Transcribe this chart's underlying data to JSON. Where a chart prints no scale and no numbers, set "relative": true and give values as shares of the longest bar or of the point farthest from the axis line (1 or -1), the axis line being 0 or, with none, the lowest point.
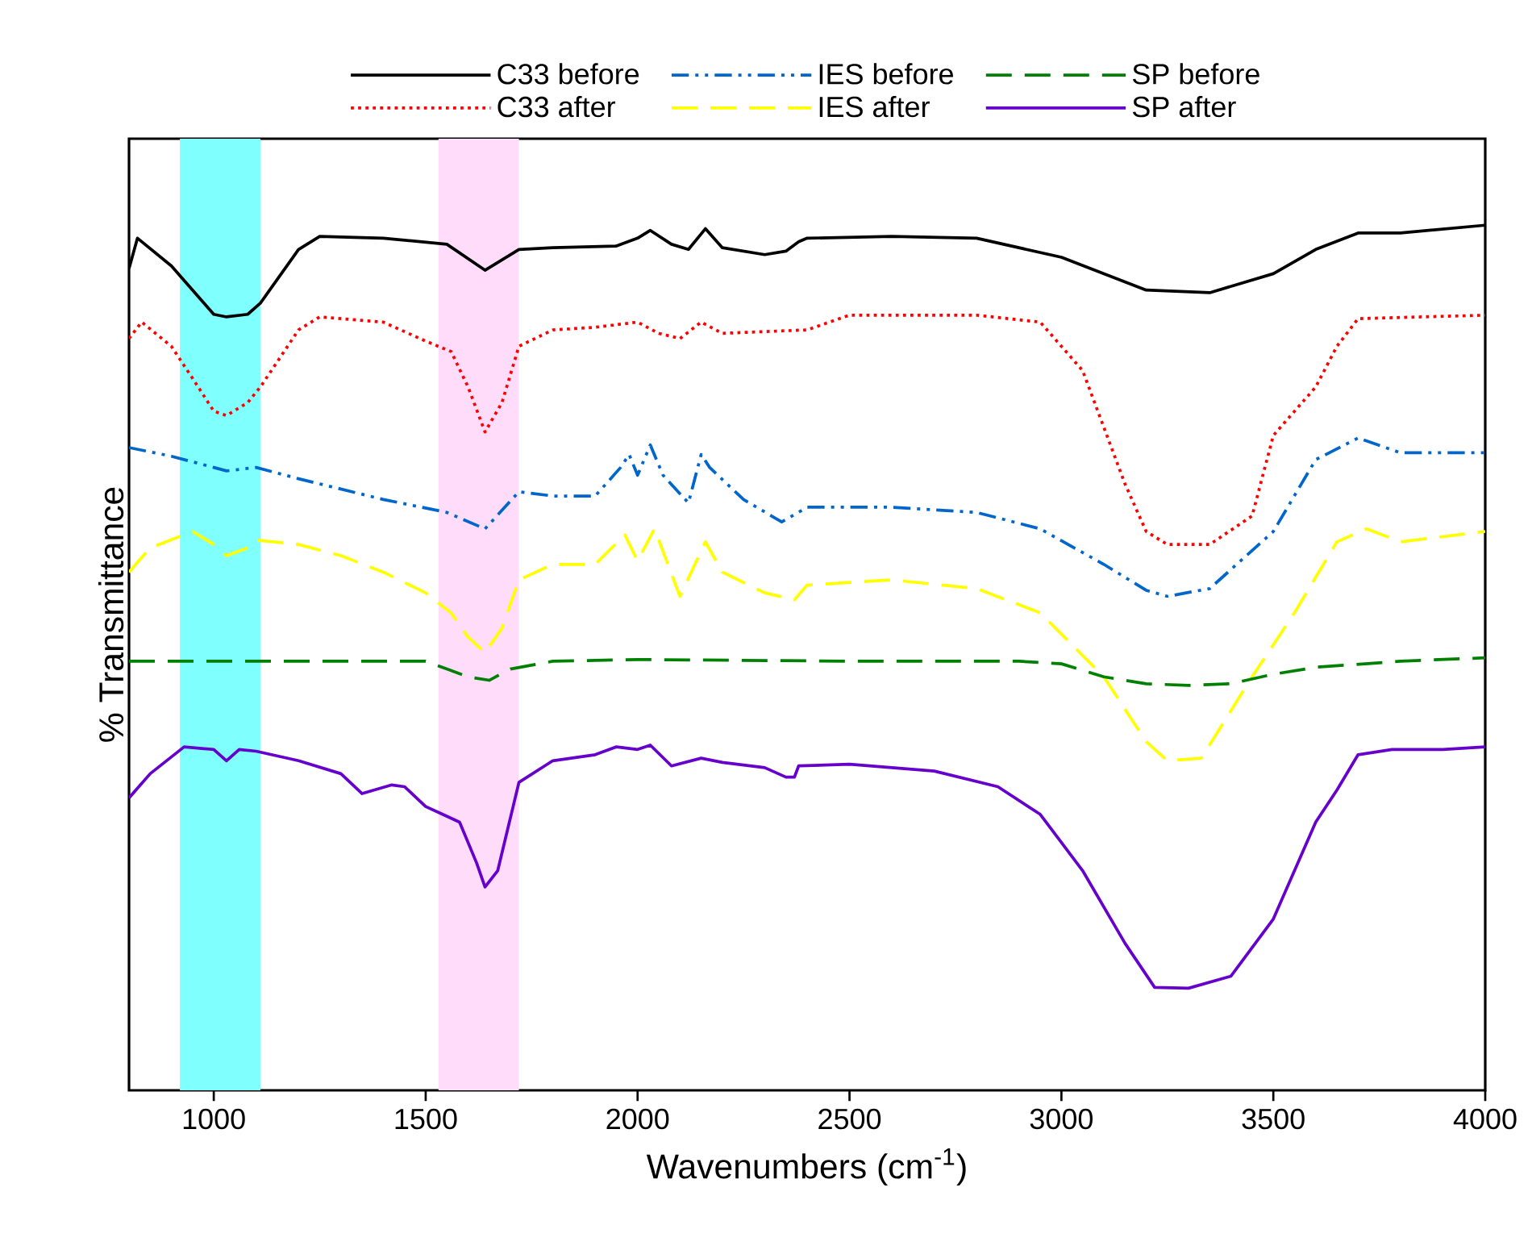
{
  "chart_data": {
    "type": "line",
    "xlabel": "Wavenumbers (cm$^{-1}$)",
    "ylabel": "% Transmittance",
    "relative": true,
    "legend": "top",
    "grid": false,
    "marker": "none",
    "xlim": [
      800,
      4000
    ],
    "xticks": [
      1000,
      1500,
      2000,
      2500,
      3000,
      3500,
      4000
    ],
    "bands": [
      {
        "axis": "x",
        "from": 920,
        "to": 1110,
        "color": "#80ffff"
      },
      {
        "axis": "x",
        "from": 1530,
        "to": 1720,
        "color": "#ffdcfa"
      }
    ],
    "series": [
      {
        "name": "C33 before",
        "color": "#000000",
        "line_style": "solid",
        "x": [
          800,
          820,
          900,
          1000,
          1030,
          1080,
          1110,
          1200,
          1250,
          1400,
          1550,
          1640,
          1720,
          1800,
          1950,
          2000,
          2030,
          2080,
          2120,
          2160,
          2200,
          2300,
          2350,
          2380,
          2400,
          2600,
          2800,
          3000,
          3200,
          3350,
          3500,
          3600,
          3700,
          3800,
          4000
        ],
        "values": [
          0.95,
          0.985,
          0.953,
          0.897,
          0.894,
          0.897,
          0.91,
          0.972,
          0.987,
          0.985,
          0.978,
          0.948,
          0.972,
          0.974,
          0.976,
          0.985,
          0.994,
          0.978,
          0.972,
          0.996,
          0.974,
          0.966,
          0.97,
          0.981,
          0.985,
          0.987,
          0.985,
          0.963,
          0.925,
          0.922,
          0.944,
          0.972,
          0.991,
          0.991,
          1.0
        ]
      },
      {
        "name": "C33 after",
        "color": "#ff0000",
        "line_style": "dotted",
        "x": [
          800,
          830,
          900,
          950,
          1000,
          1030,
          1080,
          1110,
          1200,
          1250,
          1400,
          1500,
          1560,
          1600,
          1640,
          1680,
          1720,
          1800,
          1900,
          2000,
          2050,
          2100,
          2150,
          2200,
          2400,
          2500,
          2800,
          2950,
          3050,
          3150,
          3200,
          3250,
          3350,
          3450,
          3500,
          3600,
          3650,
          3700,
          4000
        ],
        "values": [
          0.869,
          0.888,
          0.86,
          0.823,
          0.785,
          0.78,
          0.795,
          0.813,
          0.879,
          0.894,
          0.888,
          0.866,
          0.854,
          0.813,
          0.761,
          0.795,
          0.86,
          0.879,
          0.882,
          0.888,
          0.875,
          0.869,
          0.888,
          0.875,
          0.879,
          0.896,
          0.896,
          0.888,
          0.832,
          0.701,
          0.646,
          0.631,
          0.631,
          0.664,
          0.757,
          0.813,
          0.86,
          0.892,
          0.896
        ]
      },
      {
        "name": "IES before",
        "color": "#0066cc",
        "line_style": "dashdotted",
        "x": [
          800,
          900,
          1000,
          1030,
          1100,
          1200,
          1400,
          1550,
          1640,
          1720,
          1800,
          1900,
          1960,
          1980,
          2000,
          2030,
          2060,
          2120,
          2150,
          2170,
          2250,
          2340,
          2400,
          2600,
          2800,
          2950,
          3100,
          3200,
          3250,
          3350,
          3500,
          3600,
          3700,
          3800,
          4000
        ],
        "values": [
          0.743,
          0.733,
          0.72,
          0.716,
          0.72,
          0.707,
          0.683,
          0.668,
          0.649,
          0.692,
          0.687,
          0.687,
          0.72,
          0.735,
          0.711,
          0.746,
          0.711,
          0.679,
          0.735,
          0.72,
          0.683,
          0.657,
          0.674,
          0.674,
          0.668,
          0.649,
          0.608,
          0.578,
          0.571,
          0.58,
          0.646,
          0.729,
          0.754,
          0.737,
          0.737
        ]
      },
      {
        "name": "IES after",
        "color": "#ffff00",
        "line_style": "dashed",
        "x": [
          800,
          850,
          950,
          1000,
          1030,
          1080,
          1100,
          1200,
          1300,
          1400,
          1500,
          1560,
          1600,
          1640,
          1680,
          1720,
          1800,
          1900,
          1970,
          2000,
          2040,
          2100,
          2160,
          2200,
          2300,
          2370,
          2400,
          2600,
          2800,
          2950,
          3100,
          3200,
          3250,
          3330,
          3450,
          3550,
          3650,
          3720,
          3800,
          4000
        ],
        "values": [
          0.599,
          0.627,
          0.646,
          0.631,
          0.618,
          0.627,
          0.636,
          0.631,
          0.618,
          0.599,
          0.575,
          0.552,
          0.524,
          0.506,
          0.534,
          0.59,
          0.608,
          0.608,
          0.642,
          0.612,
          0.649,
          0.571,
          0.634,
          0.599,
          0.575,
          0.567,
          0.584,
          0.59,
          0.58,
          0.552,
          0.478,
          0.403,
          0.381,
          0.384,
          0.478,
          0.552,
          0.634,
          0.649,
          0.634,
          0.646
        ]
      },
      {
        "name": "SP before",
        "color": "#008000",
        "line_style": "dashed",
        "x": [
          800,
          1000,
          1200,
          1500,
          1550,
          1600,
          1650,
          1700,
          1800,
          2000,
          2500,
          2900,
          3000,
          3100,
          3200,
          3300,
          3400,
          3500,
          3600,
          3800,
          4000
        ],
        "values": [
          0.496,
          0.496,
          0.496,
          0.496,
          0.487,
          0.478,
          0.474,
          0.487,
          0.496,
          0.498,
          0.496,
          0.496,
          0.493,
          0.478,
          0.47,
          0.468,
          0.47,
          0.481,
          0.489,
          0.496,
          0.5
        ]
      },
      {
        "name": "SP after",
        "color": "#6600cc",
        "line_style": "solid",
        "x": [
          800,
          850,
          930,
          1000,
          1030,
          1060,
          1100,
          1200,
          1300,
          1350,
          1420,
          1450,
          1500,
          1540,
          1580,
          1620,
          1640,
          1670,
          1720,
          1800,
          1900,
          1950,
          2000,
          2030,
          2080,
          2150,
          2200,
          2300,
          2350,
          2370,
          2380,
          2500,
          2700,
          2850,
          2950,
          3050,
          3150,
          3220,
          3300,
          3400,
          3500,
          3600,
          3650,
          3700,
          3780,
          3900,
          4000
        ],
        "values": [
          0.338,
          0.366,
          0.397,
          0.394,
          0.381,
          0.394,
          0.392,
          0.381,
          0.366,
          0.343,
          0.353,
          0.351,
          0.328,
          0.319,
          0.31,
          0.263,
          0.235,
          0.254,
          0.356,
          0.381,
          0.388,
          0.397,
          0.394,
          0.399,
          0.375,
          0.384,
          0.379,
          0.373,
          0.362,
          0.362,
          0.375,
          0.377,
          0.369,
          0.351,
          0.319,
          0.254,
          0.17,
          0.119,
          0.118,
          0.132,
          0.198,
          0.31,
          0.347,
          0.388,
          0.394,
          0.394,
          0.397
        ]
      }
    ]
  }
}
